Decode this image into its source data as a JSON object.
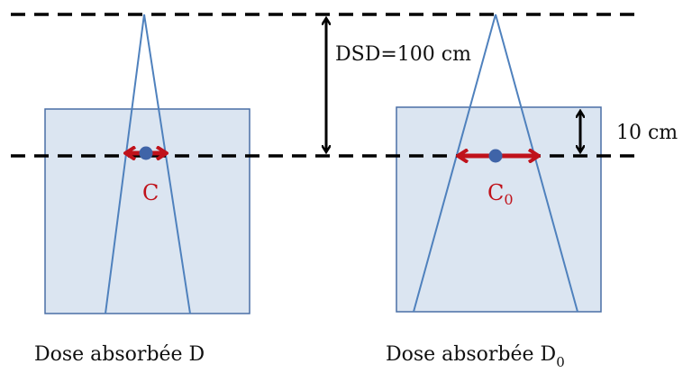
{
  "labels": {
    "dsd": "DSD=100 cm",
    "depth": "10 cm",
    "point_left": "C",
    "point_right_base": "C",
    "point_right_sub": "0",
    "caption_left": "Dose absorbée D",
    "caption_right_base": "Dose absorbée D",
    "caption_right_sub": "0"
  },
  "colors": {
    "phantom_fill": "#dbe5f1",
    "phantom_stroke": "#4a6fa5",
    "beam": "#4f81bd",
    "arrow_red": "#c0121b",
    "point": "#3f64a8",
    "dash": "#000000"
  }
}
